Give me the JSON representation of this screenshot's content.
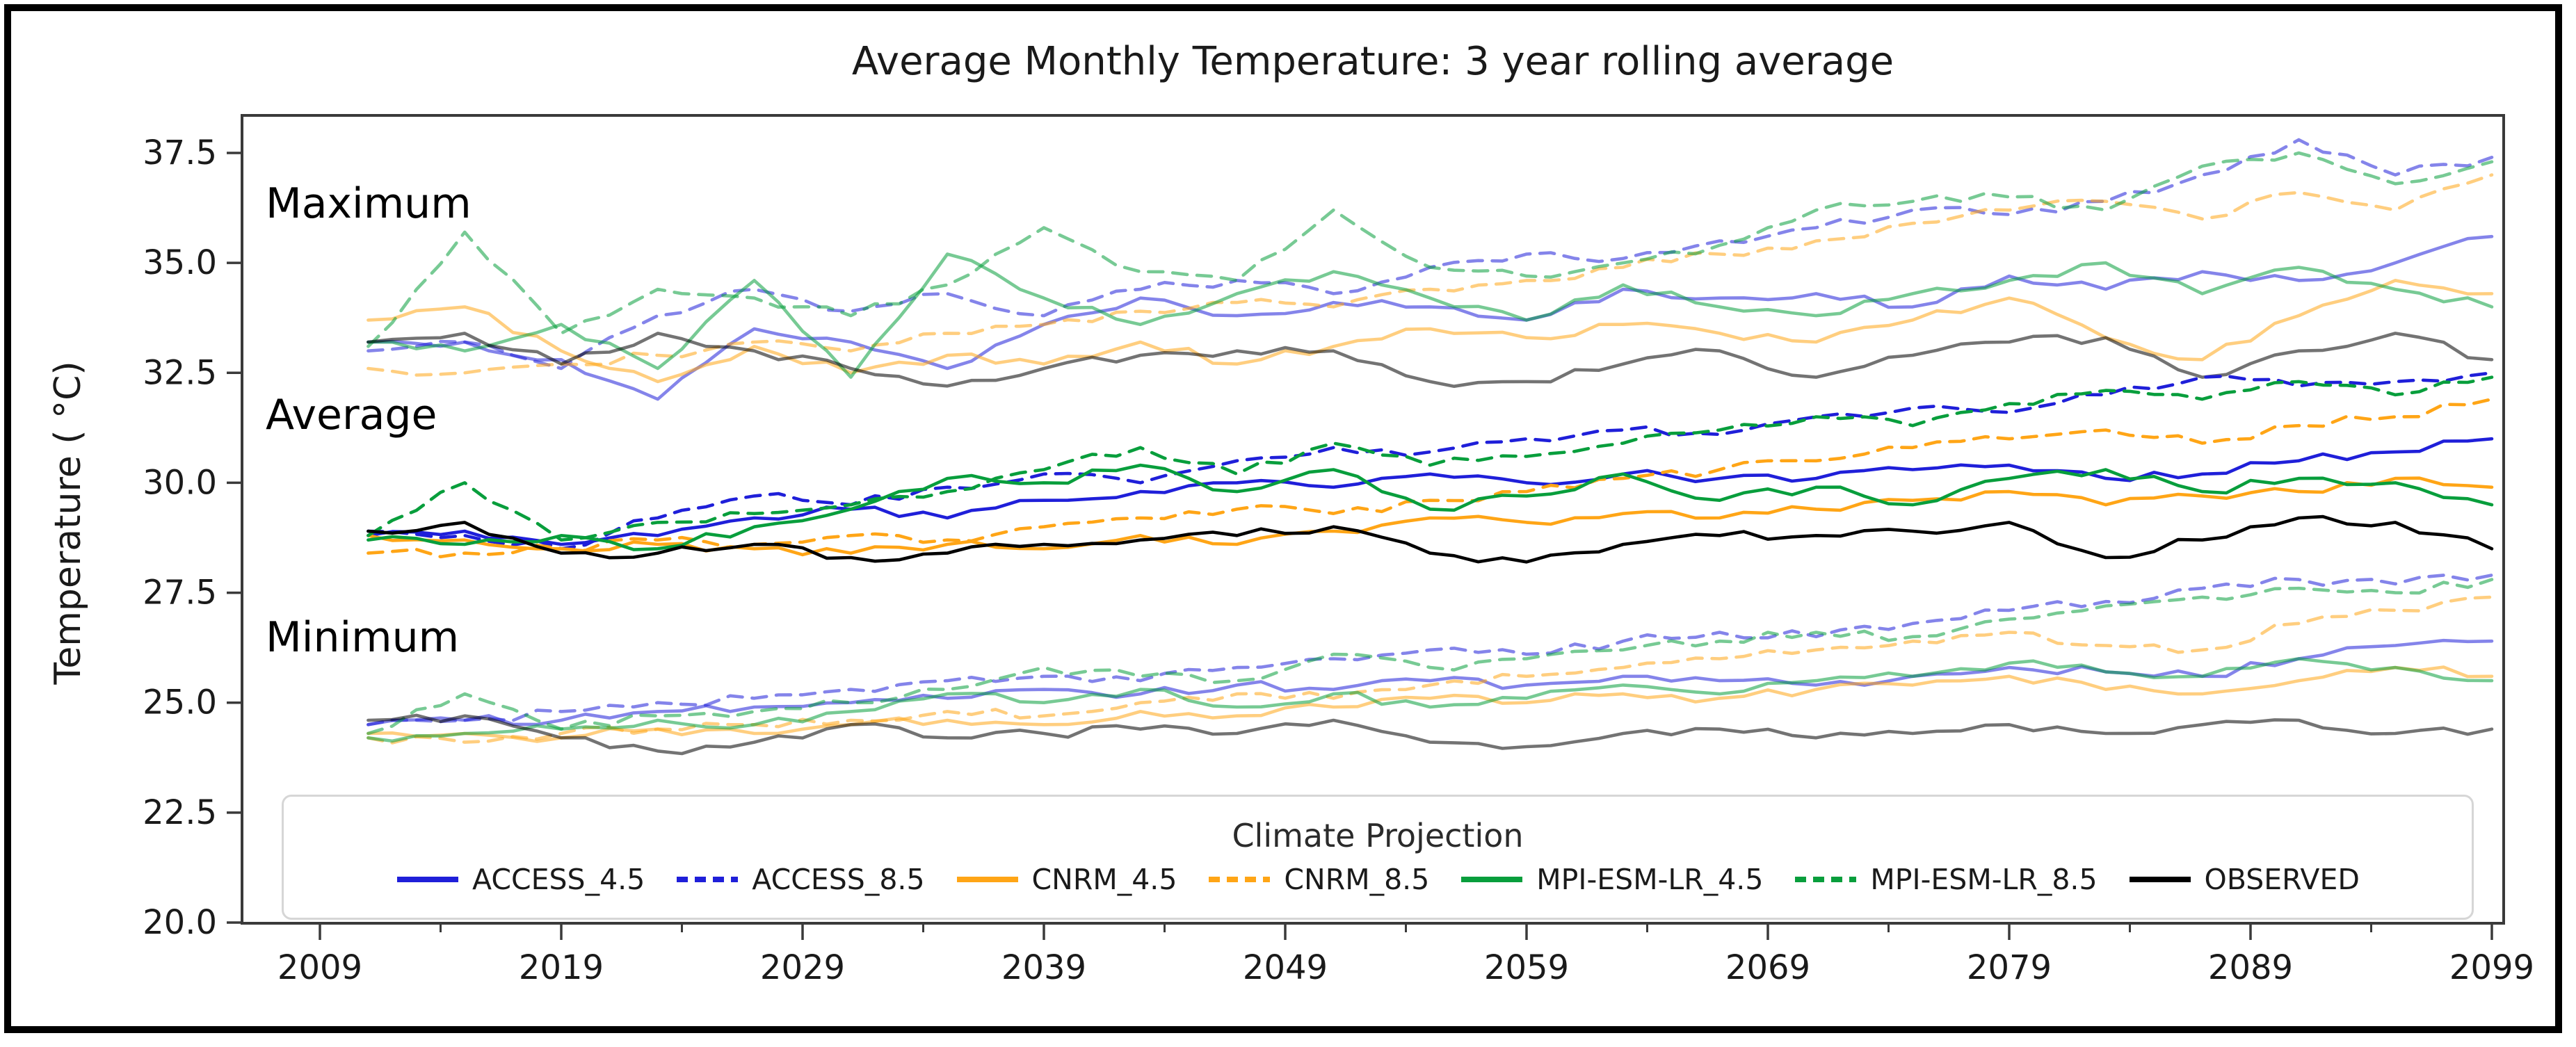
{
  "title": "Average Monthly Temperature: 3 year rolling average",
  "ylabel": "Temperature ( °C)",
  "legend_title": "Climate Projection",
  "band_labels": [
    "Maximum",
    "Average",
    "Minimum"
  ],
  "colors": {
    "access_blue": "#1f1fd9",
    "cnrm_orange": "#ffa516",
    "mpi_green": "#089e3c",
    "observed_black": "#000000",
    "axis": "#3a3a3a",
    "legend_border": "#d6d6d6"
  },
  "chart_data": {
    "type": "line",
    "title": "Average Monthly Temperature: 3 year rolling average",
    "xlabel": "",
    "ylabel": "Temperature ( °C)",
    "x_ticks": [
      2009,
      2019,
      2029,
      2039,
      2049,
      2059,
      2069,
      2079,
      2089,
      2099
    ],
    "x_minor_ticks": [
      2014,
      2024,
      2034,
      2044,
      2054,
      2064,
      2074,
      2084,
      2094
    ],
    "y_ticks": [
      37.5,
      35.0,
      32.5,
      30.0,
      27.5,
      25.0,
      22.5,
      20.0
    ],
    "y_tick_labels": [
      "37.5",
      "35.0",
      "32.5",
      "30.0",
      "27.5",
      "25.0",
      "22.5",
      "20.0"
    ],
    "ylim": [
      20.0,
      38.35
    ],
    "xlim": [
      2005.8,
      2099.5
    ],
    "grid": false,
    "legend_position": "lower center",
    "bands": [
      "max",
      "avg",
      "min"
    ],
    "x": [
      2011,
      2015,
      2019,
      2023,
      2027,
      2031,
      2035,
      2039,
      2043,
      2047,
      2051,
      2055,
      2059,
      2063,
      2067,
      2071,
      2075,
      2079,
      2083,
      2087,
      2091,
      2095,
      2099
    ],
    "series": [
      {
        "name": "ACCESS_4.5",
        "color": "#1f1fd9",
        "dashed": false,
        "max": [
          33.2,
          33.2,
          32.8,
          31.9,
          33.5,
          33.2,
          32.6,
          33.6,
          34.2,
          33.8,
          34.1,
          34.0,
          33.7,
          34.4,
          34.2,
          34.3,
          34.0,
          34.7,
          34.4,
          34.8,
          34.6,
          35.0,
          35.6
        ],
        "avg": [
          28.8,
          28.9,
          28.6,
          28.8,
          29.2,
          29.4,
          29.2,
          29.6,
          29.8,
          30.0,
          29.9,
          30.2,
          30.0,
          30.2,
          30.1,
          30.1,
          30.3,
          30.4,
          30.1,
          30.2,
          30.5,
          30.7,
          31.0
        ],
        "min": [
          24.5,
          24.6,
          24.6,
          24.8,
          24.9,
          25.0,
          25.1,
          25.3,
          25.2,
          25.4,
          25.3,
          25.5,
          25.4,
          25.6,
          25.5,
          25.4,
          25.6,
          25.8,
          25.7,
          25.6,
          26.0,
          26.3,
          26.4
        ]
      },
      {
        "name": "ACCESS_8.5",
        "color": "#1f1fd9",
        "dashed": true,
        "max": [
          33.0,
          33.2,
          32.6,
          33.8,
          34.4,
          33.9,
          34.3,
          33.8,
          34.4,
          34.6,
          34.3,
          34.9,
          35.2,
          35.1,
          35.5,
          35.8,
          36.2,
          36.1,
          36.4,
          37.0,
          37.8,
          37.0,
          37.4
        ],
        "avg": [
          28.9,
          28.8,
          28.5,
          29.2,
          29.7,
          29.5,
          29.9,
          30.2,
          30.0,
          30.5,
          30.8,
          30.7,
          31.0,
          31.2,
          31.1,
          31.5,
          31.7,
          31.6,
          32.0,
          32.4,
          32.2,
          32.3,
          32.5
        ],
        "min": [
          24.5,
          24.6,
          24.8,
          25.0,
          25.1,
          25.3,
          25.5,
          25.6,
          25.5,
          25.8,
          26.0,
          26.2,
          26.1,
          26.4,
          26.6,
          26.5,
          26.8,
          27.1,
          27.3,
          27.6,
          27.8,
          27.7,
          27.9
        ]
      },
      {
        "name": "CNRM_4.5",
        "color": "#ffa516",
        "dashed": false,
        "max": [
          33.7,
          34.0,
          33.0,
          32.3,
          33.1,
          32.5,
          32.9,
          32.7,
          33.2,
          32.7,
          33.1,
          33.5,
          33.3,
          33.6,
          33.4,
          33.2,
          33.7,
          34.2,
          33.3,
          32.8,
          33.8,
          34.6,
          34.3
        ],
        "avg": [
          28.8,
          28.7,
          28.5,
          28.6,
          28.5,
          28.4,
          28.6,
          28.5,
          28.8,
          28.6,
          28.9,
          29.2,
          29.1,
          29.3,
          29.2,
          29.4,
          29.6,
          29.8,
          29.5,
          29.7,
          29.8,
          30.1,
          29.9
        ],
        "min": [
          24.3,
          24.3,
          24.2,
          24.4,
          24.3,
          24.5,
          24.6,
          24.5,
          24.8,
          24.7,
          24.9,
          25.1,
          25.0,
          25.2,
          25.1,
          25.3,
          25.4,
          25.6,
          25.3,
          25.2,
          25.5,
          25.8,
          25.6
        ]
      },
      {
        "name": "CNRM_8.5",
        "color": "#ffa516",
        "dashed": true,
        "max": [
          32.6,
          32.5,
          32.7,
          32.9,
          33.2,
          33.0,
          33.4,
          33.6,
          33.9,
          34.1,
          34.0,
          34.4,
          34.6,
          34.9,
          35.2,
          35.5,
          35.9,
          36.2,
          36.4,
          36.0,
          36.6,
          36.2,
          37.0
        ],
        "avg": [
          28.4,
          28.4,
          28.5,
          28.7,
          28.6,
          28.8,
          28.7,
          29.0,
          29.2,
          29.4,
          29.3,
          29.6,
          29.8,
          30.1,
          30.3,
          30.5,
          30.8,
          31.0,
          31.2,
          30.9,
          31.3,
          31.5,
          31.9
        ],
        "min": [
          24.2,
          24.1,
          24.3,
          24.4,
          24.5,
          24.6,
          24.8,
          24.7,
          25.0,
          25.2,
          25.1,
          25.4,
          25.6,
          25.8,
          26.0,
          26.2,
          26.4,
          26.6,
          26.3,
          26.2,
          26.8,
          27.1,
          27.4
        ]
      },
      {
        "name": "MPI-ESM-LR_4.5",
        "color": "#089e3c",
        "dashed": false,
        "max": [
          33.2,
          33.0,
          33.6,
          32.6,
          34.6,
          32.4,
          35.2,
          34.2,
          33.6,
          34.3,
          34.8,
          34.2,
          33.7,
          34.5,
          34.0,
          33.8,
          34.3,
          34.6,
          35.0,
          34.3,
          34.9,
          34.4,
          34.0
        ],
        "avg": [
          28.7,
          28.6,
          28.8,
          28.5,
          29.0,
          29.4,
          30.1,
          30.0,
          30.4,
          29.8,
          30.3,
          29.4,
          29.7,
          30.2,
          29.6,
          29.9,
          29.5,
          30.1,
          30.3,
          29.8,
          30.1,
          30.0,
          29.5
        ],
        "min": [
          24.2,
          24.3,
          24.4,
          24.6,
          24.5,
          24.8,
          25.2,
          25.0,
          25.3,
          24.9,
          25.2,
          24.9,
          25.1,
          25.4,
          25.2,
          25.5,
          25.6,
          25.9,
          25.7,
          25.6,
          26.0,
          25.8,
          25.5
        ]
      },
      {
        "name": "MPI-ESM-LR_8.5",
        "color": "#089e3c",
        "dashed": true,
        "max": [
          33.1,
          35.7,
          33.4,
          34.4,
          34.2,
          33.8,
          34.5,
          35.8,
          34.8,
          34.6,
          36.2,
          34.9,
          34.7,
          35.0,
          35.4,
          36.2,
          36.4,
          36.5,
          36.2,
          37.2,
          37.5,
          36.8,
          37.3
        ],
        "avg": [
          28.8,
          30.0,
          28.7,
          29.1,
          29.3,
          29.5,
          29.8,
          30.3,
          30.8,
          30.2,
          30.9,
          30.4,
          30.6,
          30.9,
          31.2,
          31.5,
          31.3,
          31.8,
          32.1,
          31.9,
          32.3,
          32.0,
          32.4
        ],
        "min": [
          24.3,
          25.2,
          24.4,
          24.7,
          24.8,
          25.0,
          25.3,
          25.8,
          25.6,
          25.5,
          26.1,
          25.8,
          26.0,
          26.2,
          26.4,
          26.6,
          26.5,
          26.9,
          27.2,
          27.4,
          27.6,
          27.5,
          27.8
        ]
      },
      {
        "name": "OBSERVED",
        "color": "#000000",
        "dashed": false,
        "max": [
          33.2,
          33.4,
          32.7,
          33.4,
          33.0,
          32.6,
          32.2,
          32.6,
          32.9,
          33.0,
          33.0,
          32.3,
          32.3,
          32.7,
          33.0,
          32.4,
          32.9,
          33.2,
          33.3,
          32.4,
          33.0,
          33.4,
          32.8
        ],
        "avg": [
          28.9,
          29.1,
          28.4,
          28.4,
          28.6,
          28.3,
          28.4,
          28.6,
          28.7,
          28.8,
          29.0,
          28.4,
          28.2,
          28.6,
          28.8,
          28.8,
          28.9,
          29.1,
          28.3,
          28.7,
          29.2,
          29.1,
          28.5
        ],
        "min": [
          24.6,
          24.7,
          24.2,
          23.9,
          24.1,
          24.5,
          24.2,
          24.3,
          24.4,
          24.3,
          24.6,
          24.1,
          24.0,
          24.3,
          24.4,
          24.2,
          24.3,
          24.5,
          24.3,
          24.5,
          24.6,
          24.3,
          24.4
        ]
      }
    ]
  }
}
